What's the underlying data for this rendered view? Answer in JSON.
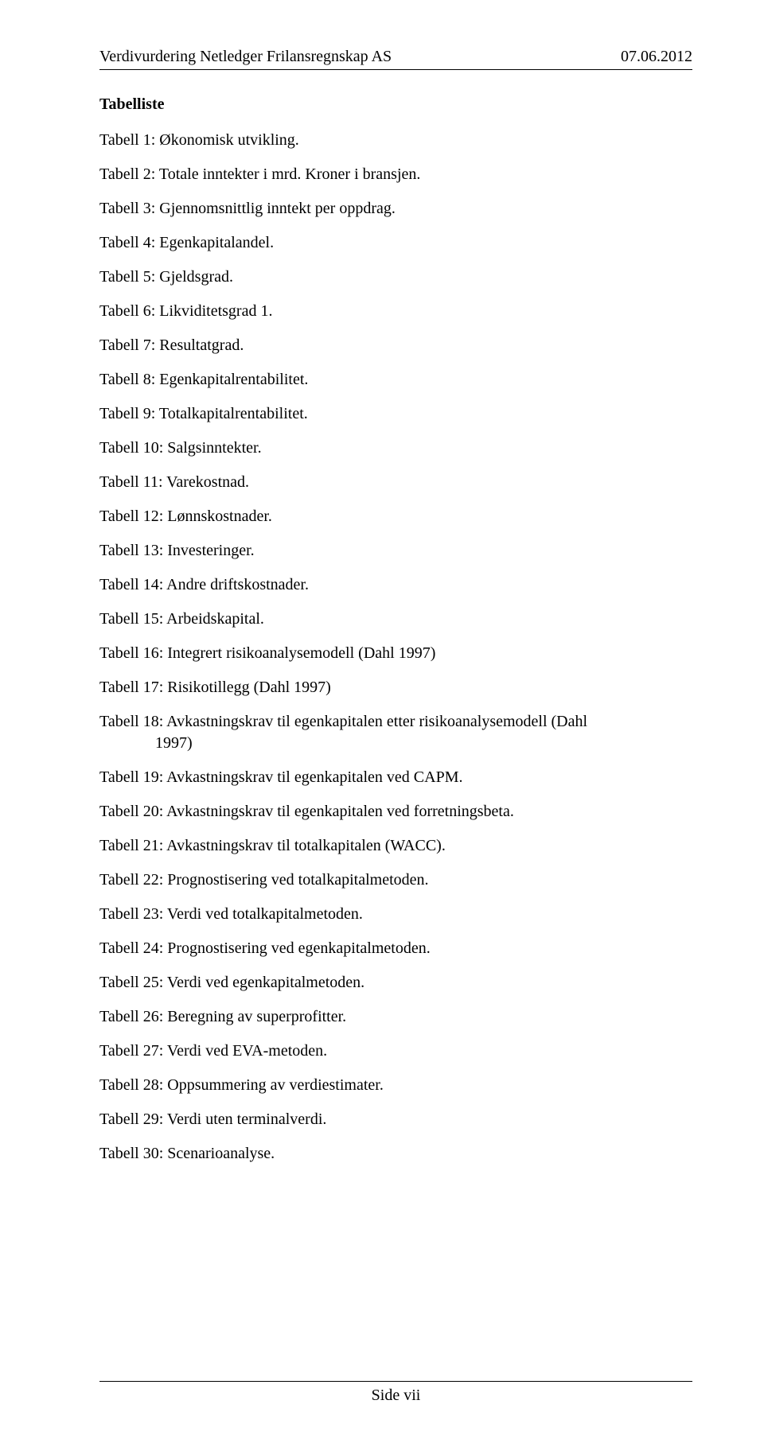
{
  "header": {
    "left": "Verdivurdering Netledger Frilansregnskap AS",
    "right": "07.06.2012"
  },
  "section_title": "Tabelliste",
  "entries": [
    {
      "text": "Tabell 1: Økonomisk utvikling."
    },
    {
      "text": "Tabell 2: Totale inntekter i mrd. Kroner i bransjen."
    },
    {
      "text": "Tabell 3: Gjennomsnittlig inntekt per oppdrag."
    },
    {
      "text": "Tabell 4: Egenkapitalandel."
    },
    {
      "text": "Tabell 5: Gjeldsgrad."
    },
    {
      "text": "Tabell 6: Likviditetsgrad 1."
    },
    {
      "text": "Tabell 7: Resultatgrad."
    },
    {
      "text": "Tabell 8: Egenkapitalrentabilitet."
    },
    {
      "text": "Tabell 9: Totalkapitalrentabilitet."
    },
    {
      "text": "Tabell 10: Salgsinntekter."
    },
    {
      "text": "Tabell 11: Varekostnad."
    },
    {
      "text": "Tabell 12: Lønnskostnader."
    },
    {
      "text": "Tabell 13: Investeringer."
    },
    {
      "text": "Tabell 14: Andre driftskostnader."
    },
    {
      "text": "Tabell 15: Arbeidskapital."
    },
    {
      "text": "Tabell 16: Integrert risikoanalysemodell (Dahl 1997)"
    },
    {
      "text": "Tabell 17: Risikotillegg (Dahl 1997)"
    },
    {
      "text": "Tabell 18: Avkastningskrav til egenkapitalen etter risikoanalysemodell (Dahl",
      "cont": "1997)"
    },
    {
      "text": "Tabell 19: Avkastningskrav til egenkapitalen ved CAPM."
    },
    {
      "text": "Tabell 20: Avkastningskrav til egenkapitalen ved forretningsbeta."
    },
    {
      "text": "Tabell 21: Avkastningskrav til totalkapitalen (WACC)."
    },
    {
      "text": "Tabell 22: Prognostisering ved totalkapitalmetoden."
    },
    {
      "text": "Tabell 23: Verdi ved totalkapitalmetoden."
    },
    {
      "text": "Tabell 24: Prognostisering ved egenkapitalmetoden."
    },
    {
      "text": "Tabell 25: Verdi ved egenkapitalmetoden."
    },
    {
      "text": "Tabell 26: Beregning av superprofitter."
    },
    {
      "text": "Tabell 27: Verdi ved EVA-metoden."
    },
    {
      "text": "Tabell 28: Oppsummering av verdiestimater."
    },
    {
      "text": "Tabell 29: Verdi uten terminalverdi."
    },
    {
      "text": "Tabell 30: Scenarioanalyse."
    }
  ],
  "footer": {
    "page_label": "Side vii"
  }
}
